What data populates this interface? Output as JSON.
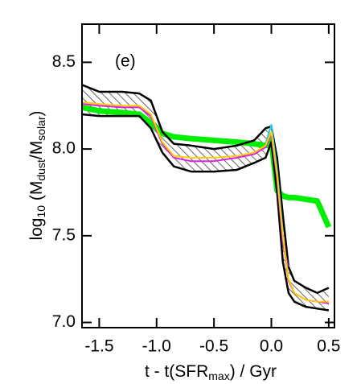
{
  "chart_data": {
    "type": "line",
    "annotation": "(e)",
    "y_label": {
      "main": "log",
      "sub1": "10",
      "mid": " (M",
      "sub2": "dust",
      "mid2": "/M",
      "sub3": "solar",
      "end": ")"
    },
    "x_label": {
      "main": "t - t(SFR",
      "sub": "max",
      "end": ") / Gyr"
    },
    "x": [
      -1.65,
      -1.5,
      -1.3,
      -1.15,
      -1.05,
      -0.95,
      -0.85,
      -0.7,
      -0.5,
      -0.3,
      -0.15,
      -0.05,
      0.0,
      0.05,
      0.1,
      0.15,
      0.2,
      0.3,
      0.4,
      0.5
    ],
    "band": {
      "upper": [
        8.37,
        8.33,
        8.33,
        8.32,
        8.28,
        8.1,
        8.03,
        8.02,
        8.0,
        8.02,
        8.05,
        8.12,
        8.13,
        7.95,
        7.62,
        7.32,
        7.24,
        7.2,
        7.17,
        7.2
      ],
      "lower": [
        8.2,
        8.19,
        8.19,
        8.19,
        8.12,
        7.98,
        7.9,
        7.87,
        7.87,
        7.88,
        7.92,
        7.95,
        8.04,
        7.75,
        7.35,
        7.17,
        7.12,
        7.09,
        7.08,
        7.07
      ],
      "color": "#000000"
    },
    "series": [
      {
        "color": "#00ee00",
        "width": 7,
        "values": [
          8.24,
          8.22,
          8.21,
          8.2,
          8.15,
          8.09,
          8.07,
          8.06,
          8.05,
          8.04,
          8.03,
          8.02,
          8.05,
          7.76,
          7.73,
          7.72,
          7.72,
          7.71,
          7.7,
          7.55
        ]
      },
      {
        "color": "#22ccee",
        "width": 2,
        "values": [
          null,
          null,
          null,
          null,
          null,
          null,
          null,
          null,
          null,
          null,
          null,
          8.03,
          8.14,
          7.88,
          7.52,
          null,
          null,
          null,
          null,
          null
        ]
      },
      {
        "color": "#7020c0",
        "width": 2,
        "values": [
          null,
          null,
          null,
          null,
          null,
          null,
          null,
          null,
          null,
          null,
          null,
          null,
          8.08,
          7.82,
          7.45,
          7.32,
          null,
          null,
          null,
          null
        ]
      },
      {
        "color": "#e020e0",
        "width": 2,
        "values": [
          8.26,
          8.25,
          8.24,
          8.24,
          8.19,
          8.03,
          7.95,
          7.93,
          7.93,
          7.95,
          7.97,
          8.01,
          8.09,
          7.84,
          7.48,
          7.24,
          7.17,
          7.13,
          7.12,
          7.11
        ]
      },
      {
        "color": "#ffcc00",
        "width": 2,
        "values": [
          8.27,
          8.26,
          8.25,
          8.25,
          8.2,
          8.04,
          7.96,
          7.95,
          7.95,
          7.96,
          7.98,
          8.02,
          8.1,
          7.85,
          7.5,
          7.25,
          7.17,
          7.13,
          7.12,
          7.12
        ]
      }
    ],
    "xlim": [
      -1.65,
      0.55
    ],
    "ylim": [
      6.97,
      8.72
    ],
    "xticks": [
      {
        "value": -1.5,
        "label": "-1.5"
      },
      {
        "value": -1.0,
        "label": "-1.0"
      },
      {
        "value": -0.5,
        "label": "-0.5"
      },
      {
        "value": 0.0,
        "label": "0.0"
      },
      0.5
    ],
    "yticks": [
      {
        "value": 7.0,
        "label": "7.0"
      },
      7.5,
      {
        "value": 8.0,
        "label": "8.0"
      },
      8.5
    ]
  }
}
